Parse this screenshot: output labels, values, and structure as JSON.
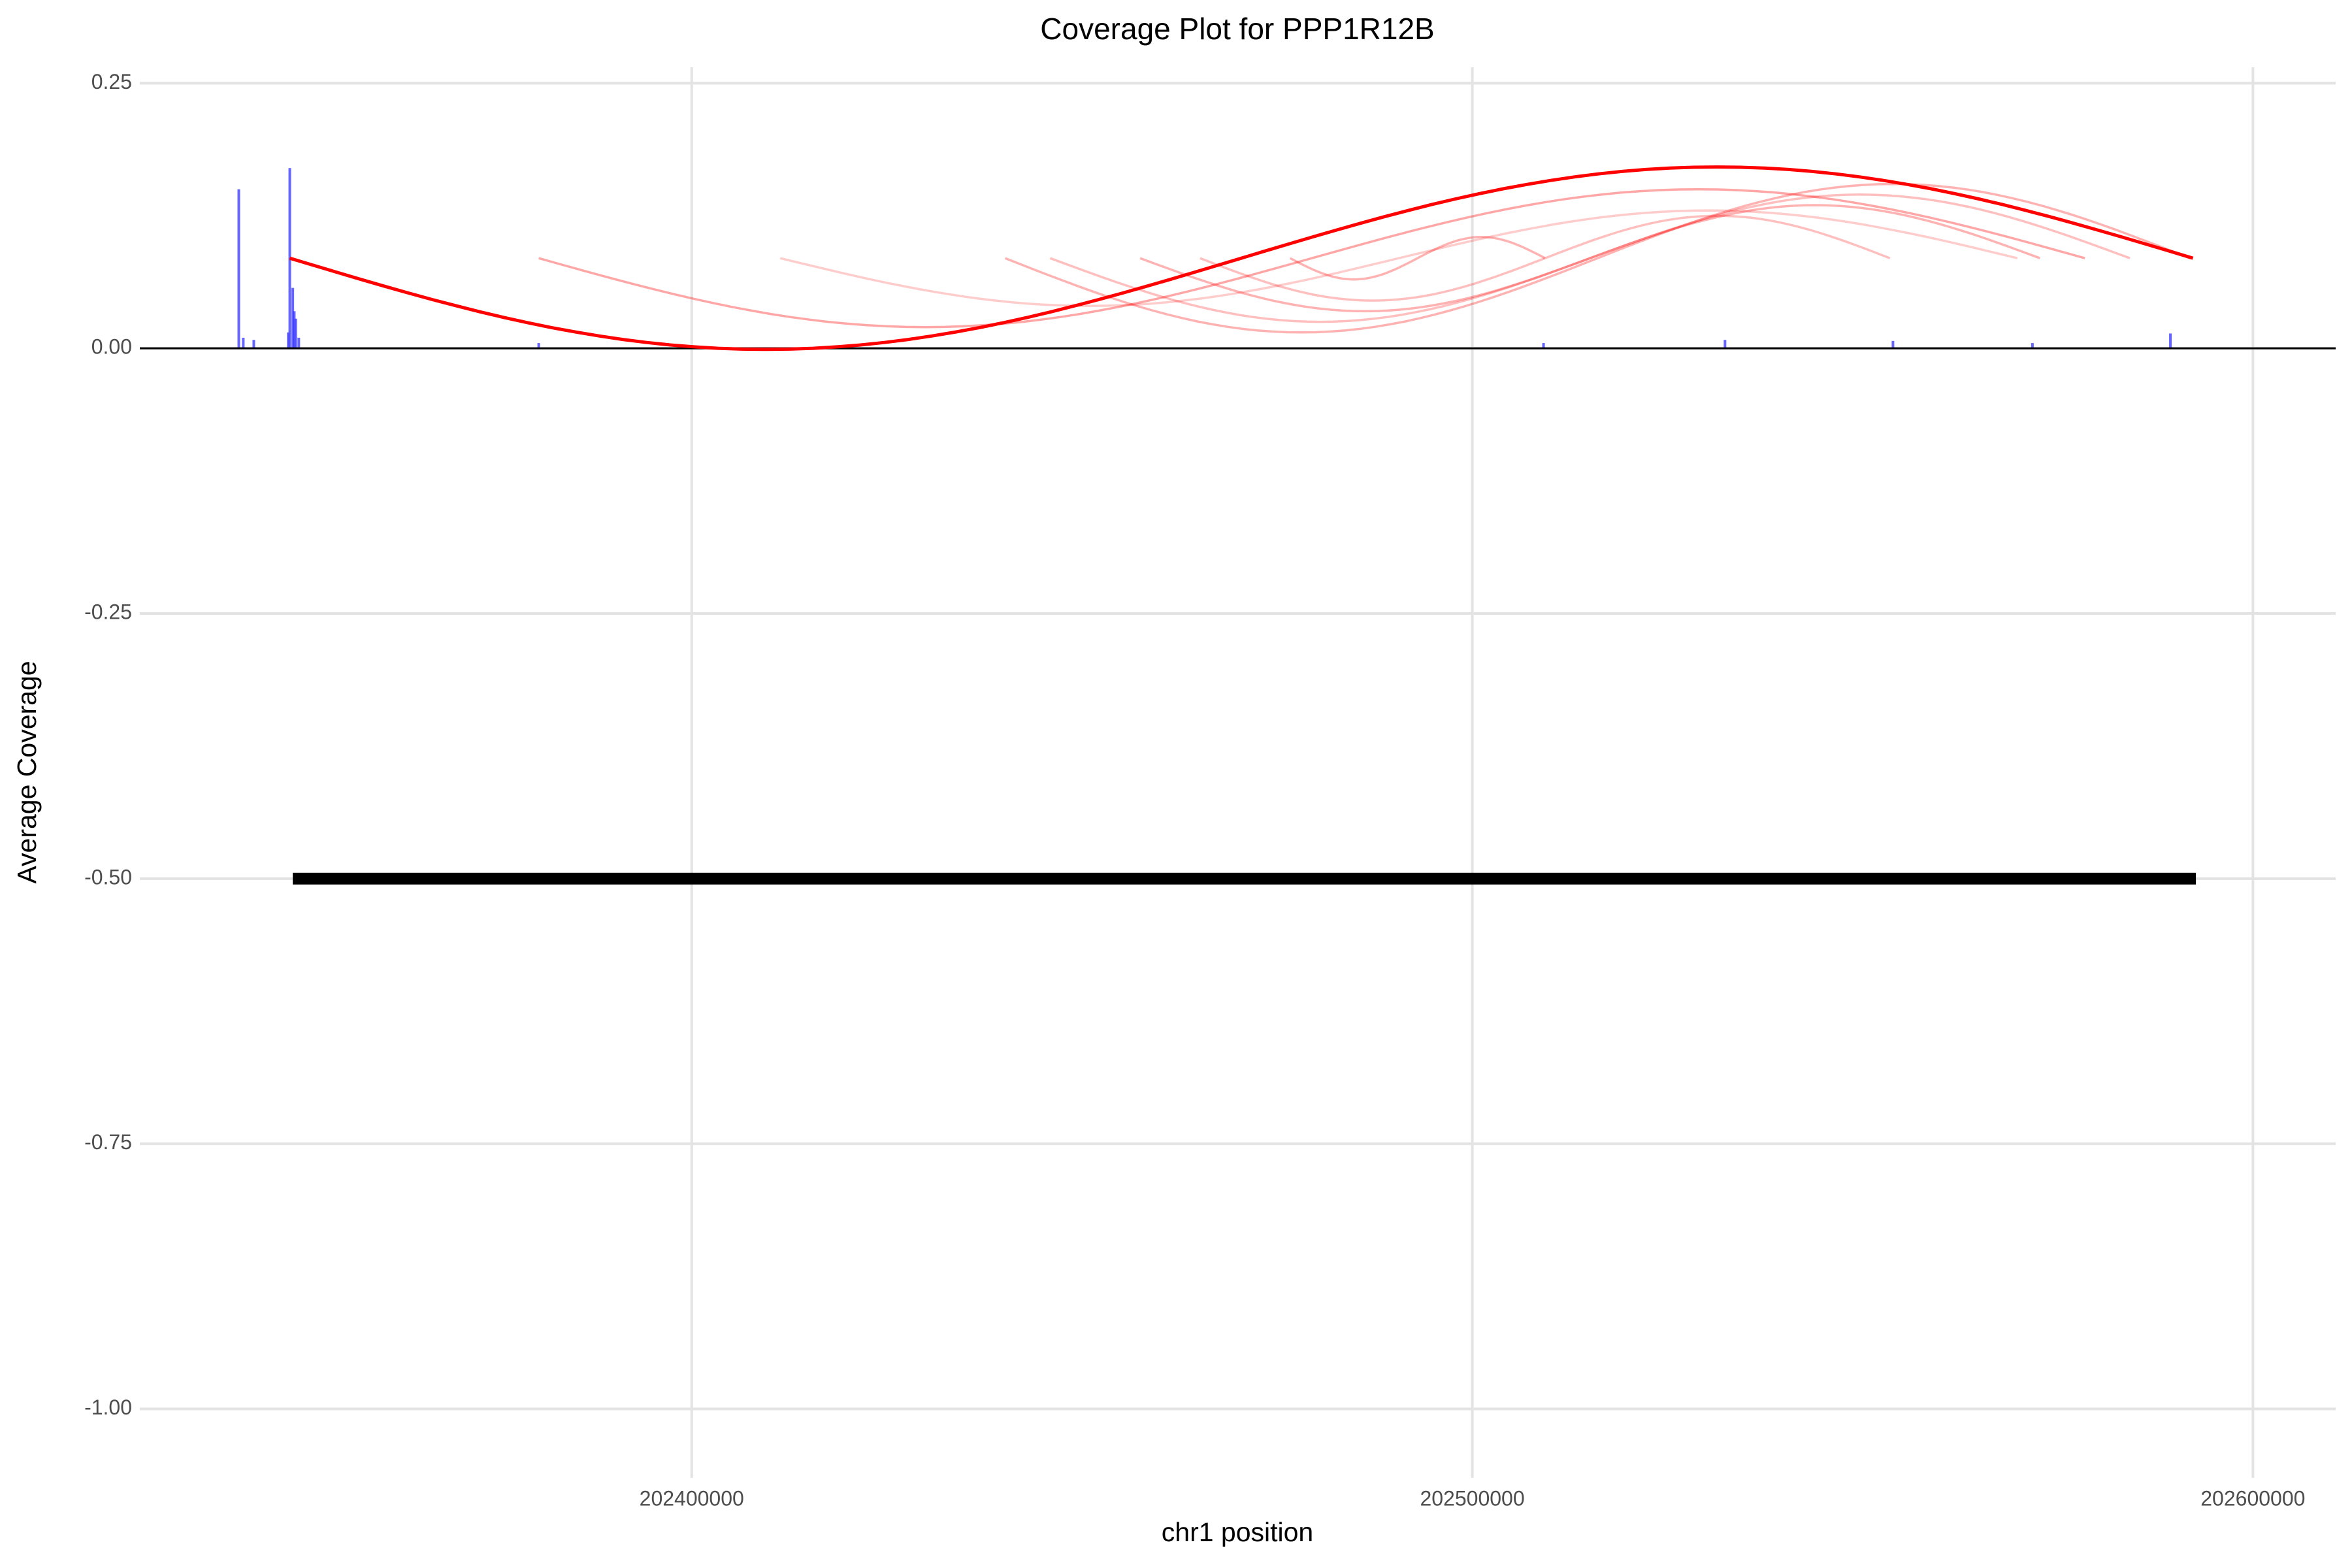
{
  "chart_data": {
    "type": "coverage",
    "title": "Coverage Plot for PPP1R12B",
    "x_label": "chr1 position",
    "y_label": "Average Coverage",
    "xlim": [
      202329300,
      202610600
    ],
    "ylim": [
      -1.065,
      0.265
    ],
    "xticks": [
      202400000,
      202500000,
      202600000
    ],
    "yticks": [
      0.25,
      {
        "value": 0,
        "label": "0.00"
      },
      -0.25,
      {
        "value": -0.5,
        "label": "-0.50"
      },
      -0.75,
      {
        "value": -1,
        "label": "-1.00"
      }
    ],
    "grid": true,
    "hline": 0,
    "bar_color": "#3333ff",
    "x": [
      202341980,
      202342556,
      202343901,
      202348320,
      202348512,
      202348896,
      202349088,
      202349280,
      202349665,
      202380404,
      202509124,
      202532371,
      202553888,
      202571755,
      202589430
    ],
    "values": [
      0.15,
      0.01,
      0.008,
      0.015,
      0.17,
      0.057,
      0.035,
      0.028,
      0.01,
      0.005,
      0.005,
      0.008,
      0.007,
      0.005,
      0.014
    ],
    "arc_color": "#ff0000",
    "arc_base": 0.085,
    "arcs": [
      {
        "start": 202348512,
        "end": 202592312,
        "amplitude": 0.086,
        "opacity": 1
      },
      {
        "start": 202380404,
        "end": 202578479,
        "amplitude": 0.065,
        "opacity": 0.35
      },
      {
        "start": 202411335,
        "end": 202569834,
        "amplitude": 0.045,
        "opacity": 0.2
      },
      {
        "start": 202440153,
        "end": 202591928,
        "amplitude": 0.07,
        "opacity": 0.3
      },
      {
        "start": 202445917,
        "end": 202584243,
        "amplitude": 0.06,
        "opacity": 0.25
      },
      {
        "start": 202457444,
        "end": 202572716,
        "amplitude": 0.05,
        "opacity": 0.3
      },
      {
        "start": 202465129,
        "end": 202553504,
        "amplitude": 0.04,
        "opacity": 0.25
      },
      {
        "start": 202476656,
        "end": 202509316,
        "amplitude": 0.02,
        "opacity": 0.3
      }
    ],
    "gene": {
      "start": 202348896,
      "end": 202592697,
      "y": -0.5,
      "color": "#000000"
    }
  }
}
